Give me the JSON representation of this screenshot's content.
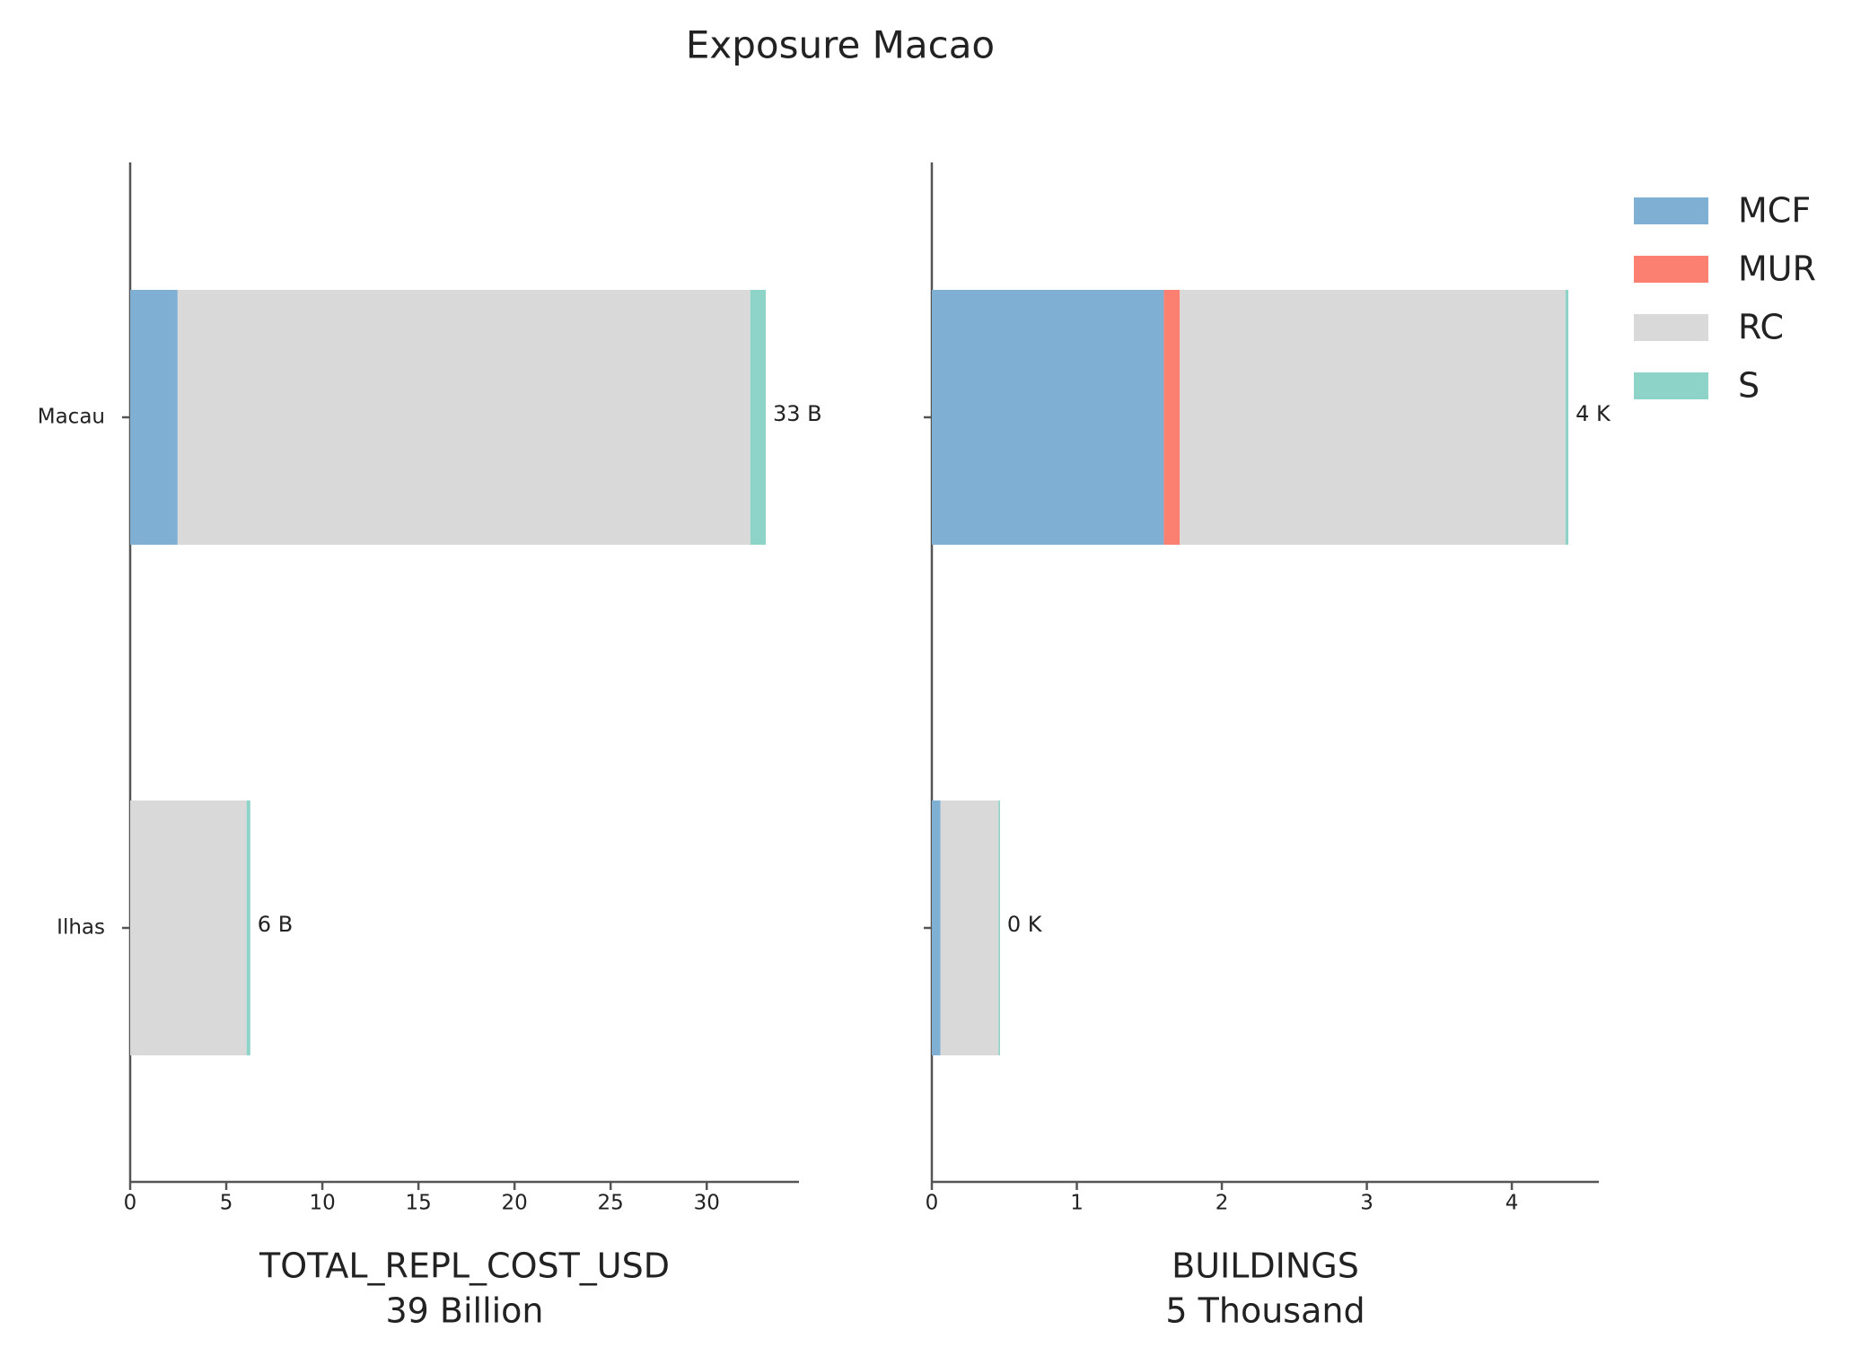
{
  "title": "Exposure Macao",
  "legend": {
    "loc": "upper right"
  },
  "chart_data": [
    {
      "type": "bar",
      "orientation": "horizontal",
      "categories": [
        "Macau",
        "Ilhas"
      ],
      "series": [
        {
          "name": "MCF",
          "color": "#7fafd3",
          "values": [
            2.47,
            0
          ]
        },
        {
          "name": "MUR",
          "color": "#fb8072",
          "values": [
            0,
            0
          ]
        },
        {
          "name": "RC",
          "color": "#d9d9d9",
          "values": [
            29.8,
            6.06
          ]
        },
        {
          "name": "S",
          "color": "#8dd3c7",
          "values": [
            0.8,
            0.19
          ]
        }
      ],
      "totals": [
        33.07,
        6.25
      ],
      "total_labels": [
        "33 B",
        "6 B"
      ],
      "xlim": [
        0,
        34.8
      ],
      "xticks": [
        0,
        5,
        10,
        15,
        20,
        25,
        30
      ],
      "xlabel": [
        "TOTAL_REPL_COST_USD",
        "39 Billion"
      ]
    },
    {
      "type": "bar",
      "orientation": "horizontal",
      "categories": [
        "Macau",
        "Ilhas"
      ],
      "series": [
        {
          "name": "MCF",
          "color": "#7fafd3",
          "values": [
            1.6,
            0.06
          ]
        },
        {
          "name": "MUR",
          "color": "#fb8072",
          "values": [
            0.11,
            0
          ]
        },
        {
          "name": "RC",
          "color": "#d9d9d9",
          "values": [
            2.66,
            0.4
          ]
        },
        {
          "name": "S",
          "color": "#8dd3c7",
          "values": [
            0.02,
            0.01
          ]
        }
      ],
      "totals": [
        4.39,
        0.47
      ],
      "total_labels": [
        "4 K",
        "0 K"
      ],
      "xlim": [
        0,
        4.6
      ],
      "xticks": [
        0,
        1,
        2,
        3,
        4
      ],
      "xlabel": [
        "BUILDINGS",
        "5 Thousand"
      ]
    }
  ]
}
